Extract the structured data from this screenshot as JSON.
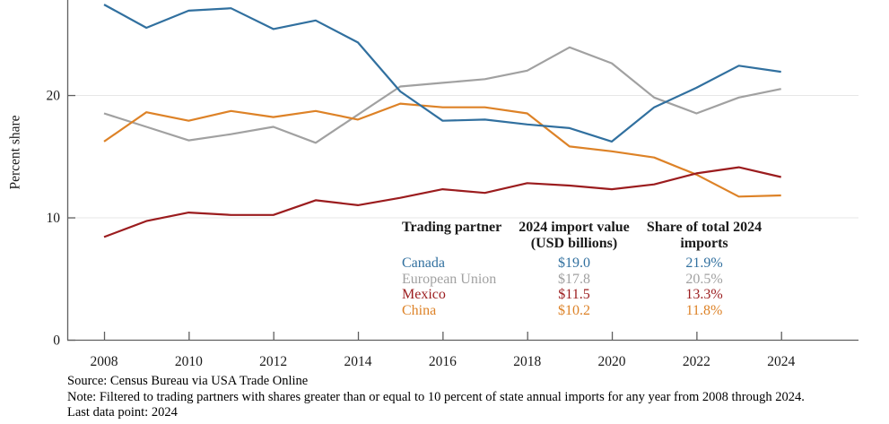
{
  "chart_data": {
    "type": "line",
    "title": "",
    "xlabel": "",
    "ylabel": "Percent share",
    "x": [
      2008,
      2009,
      2010,
      2011,
      2012,
      2013,
      2014,
      2015,
      2016,
      2017,
      2018,
      2019,
      2020,
      2021,
      2022,
      2023,
      2024
    ],
    "x_ticks": [
      2008,
      2010,
      2012,
      2014,
      2016,
      2018,
      2020,
      2022,
      2024
    ],
    "y_ticks": [
      0,
      10,
      20
    ],
    "gridlines": [
      10,
      20
    ],
    "ylim": [
      0,
      27.8
    ],
    "grid": "horizontal-light",
    "legend_position": "embedded-table-lower-right",
    "series": [
      {
        "name": "Canada",
        "color": "#31709f",
        "values": [
          27.4,
          25.5,
          26.9,
          27.1,
          25.4,
          26.1,
          24.3,
          20.3,
          17.9,
          18.0,
          17.6,
          17.3,
          16.2,
          19.0,
          20.6,
          22.4,
          21.9
        ]
      },
      {
        "name": "European Union",
        "color": "#a1a1a1",
        "values": [
          18.5,
          17.4,
          16.3,
          16.8,
          17.4,
          16.1,
          18.4,
          20.7,
          21.0,
          21.3,
          22.0,
          23.9,
          22.6,
          19.8,
          18.5,
          19.8,
          20.5
        ]
      },
      {
        "name": "Mexico",
        "color": "#9b1c1e",
        "values": [
          8.4,
          9.7,
          10.4,
          10.2,
          10.2,
          11.4,
          11.0,
          11.6,
          12.3,
          12.0,
          12.8,
          12.6,
          12.3,
          12.7,
          13.6,
          14.1,
          13.3
        ]
      },
      {
        "name": "China",
        "color": "#dd8227",
        "values": [
          16.2,
          18.6,
          17.9,
          18.7,
          18.2,
          18.7,
          18.0,
          19.3,
          19.0,
          19.0,
          18.5,
          15.8,
          15.4,
          14.9,
          13.5,
          11.7,
          11.8
        ]
      }
    ]
  },
  "legend_table": {
    "headers": [
      "Trading partner",
      "2024 import value (USD billions)",
      "Share of total 2024 imports"
    ],
    "rows": [
      {
        "partner": "Canada",
        "import_value": "$19.0",
        "share": "21.9%",
        "color": "#31709f"
      },
      {
        "partner": "European Union",
        "import_value": "$17.8",
        "share": "20.5%",
        "color": "#a1a1a1"
      },
      {
        "partner": "Mexico",
        "import_value": "$11.5",
        "share": "13.3%",
        "color": "#9b1c1e"
      },
      {
        "partner": "China",
        "import_value": "$10.2",
        "share": "11.8%",
        "color": "#dd8227"
      }
    ]
  },
  "footer": {
    "source": "Source: Census Bureau via USA Trade Online",
    "note": "Note: Filtered to trading partners with shares greater than or equal to 10 percent of state annual imports for any year from 2008 through 2024.",
    "last_data_point": "Last data point: 2024"
  },
  "colors": {
    "axis": "#5f5f5f",
    "gridline": "#e7e7e7",
    "text": "#1a1a1a"
  }
}
